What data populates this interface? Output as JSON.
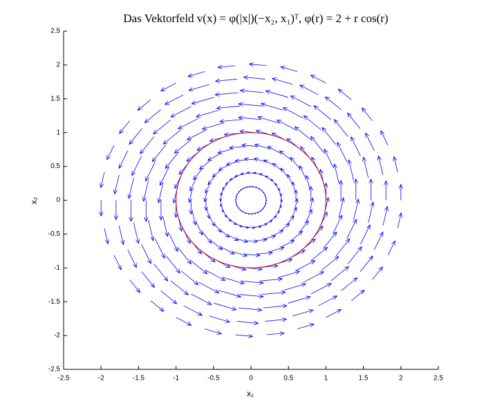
{
  "chart_data": {
    "type": "quiver",
    "title": "Das Vektorfeld v(x) = φ(|x|)(−x₂, x₁)ᵀ, φ(r) = 2 + r cos(r)",
    "x_label": "x₁",
    "y_label": "x₂",
    "radii": [
      0.2,
      0.4,
      0.6,
      0.8,
      1.0,
      1.2,
      1.4,
      1.6,
      1.8,
      2.0
    ],
    "magnitudes": [
      0.439,
      0.947,
      1.497,
      2.046,
      2.54,
      2.922,
      3.133,
      3.126,
      2.864,
      2.336
    ],
    "angles_deg": [
      0,
      12,
      24,
      36,
      48,
      60,
      72,
      84,
      96,
      108,
      120,
      132,
      144,
      156,
      168,
      180,
      192,
      204,
      216,
      228,
      240,
      252,
      264,
      276,
      288,
      300,
      312,
      324,
      336,
      348
    ],
    "color": "#0000ff",
    "circle": {
      "radius": 1,
      "color": "#cc0000"
    },
    "xlim": [
      -2.5,
      2.5
    ],
    "ylim": [
      -2.5,
      2.5
    ],
    "xticks": [
      -2.5,
      -2,
      -1.5,
      -1,
      -0.5,
      0,
      0.5,
      1,
      1.5,
      2,
      2.5
    ],
    "yticks": [
      -2.5,
      -2,
      -1.5,
      -1,
      -0.5,
      0,
      0.5,
      1,
      1.5,
      2,
      2.5
    ]
  }
}
